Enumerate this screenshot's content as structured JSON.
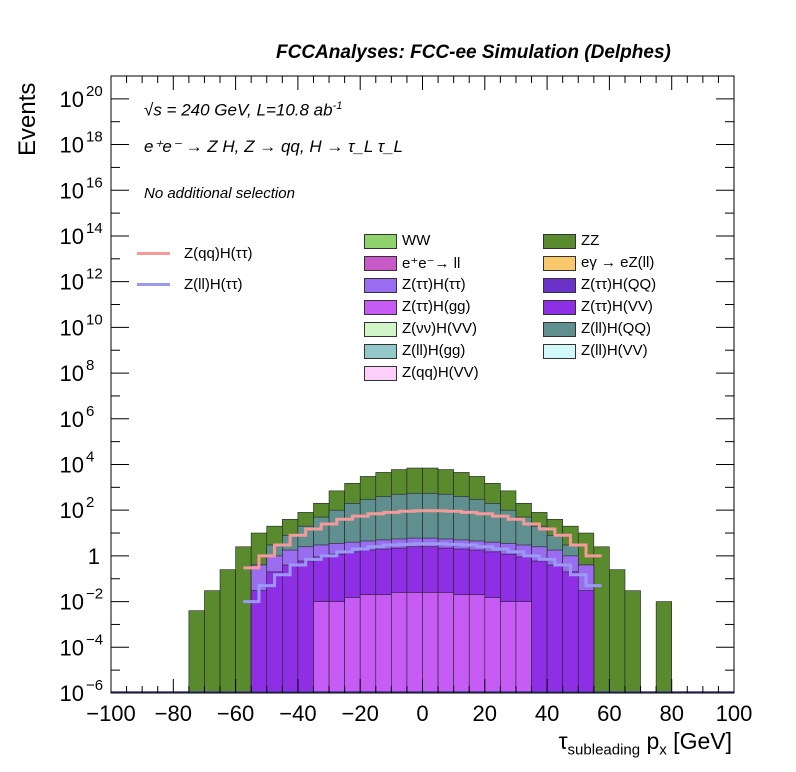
{
  "header": {
    "title": "FCCAnalyses: FCC-ee Simulation (Delphes)"
  },
  "annotations": {
    "energy": "√s = 240 GeV, L=10.8 ab",
    "energy_sup": "-1",
    "process": "e⁺e⁻ → Z H, Z → qq, H → τ_L τ_L",
    "selection": "No additional selection"
  },
  "chart_data": {
    "type": "bar",
    "title": "",
    "xlabel": "τsubleading px [GeV]",
    "ylabel": "Events",
    "xlim": [
      -100,
      100
    ],
    "ylim": [
      1e-06,
      1e+21
    ],
    "yscale": "log",
    "bin_width": 5,
    "bin_centers": [
      -77.5,
      -72.5,
      -67.5,
      -62.5,
      -57.5,
      -52.5,
      -47.5,
      -42.5,
      -37.5,
      -32.5,
      -27.5,
      -22.5,
      -17.5,
      -12.5,
      -7.5,
      -2.5,
      2.5,
      7.5,
      12.5,
      17.5,
      22.5,
      27.5,
      32.5,
      37.5,
      42.5,
      47.5,
      52.5,
      57.5,
      62.5,
      67.5,
      72.5,
      77.5
    ],
    "x_ticks": [
      -100,
      -80,
      -60,
      -40,
      -20,
      0,
      20,
      40,
      60,
      80,
      100
    ],
    "y_ticks": [
      {
        "label": "10",
        "exp": "-6"
      },
      {
        "label": "10",
        "exp": "-4"
      },
      {
        "label": "10",
        "exp": "-2"
      },
      {
        "label": "1",
        "exp": ""
      },
      {
        "label": "10",
        "exp": "2"
      },
      {
        "label": "10",
        "exp": "4"
      },
      {
        "label": "10",
        "exp": "6"
      },
      {
        "label": "10",
        "exp": "8"
      },
      {
        "label": "10",
        "exp": "10"
      },
      {
        "label": "10",
        "exp": "12"
      },
      {
        "label": "10",
        "exp": "14"
      },
      {
        "label": "10",
        "exp": "16"
      },
      {
        "label": "10",
        "exp": "18"
      },
      {
        "label": "10",
        "exp": "20"
      }
    ],
    "stack_totals": [
      {
        "name": "ZZ",
        "color": "#5a8a2e",
        "values": [
          1e-06,
          0.004,
          0.03,
          0.25,
          2.5,
          10,
          20,
          40,
          80,
          200,
          700,
          1500,
          3000,
          4500,
          6000,
          7000,
          7000,
          6000,
          4500,
          3000,
          1500,
          700,
          200,
          80,
          40,
          20,
          10,
          2.5,
          0.25,
          0.03,
          1e-06,
          0.01
        ]
      },
      {
        "name": "Z(ll)H(QQ)",
        "color": "#5f8f8f",
        "values": [
          null,
          null,
          null,
          null,
          null,
          0.4,
          3,
          8,
          20,
          50,
          100,
          200,
          300,
          400,
          500,
          550,
          550,
          500,
          400,
          300,
          200,
          100,
          50,
          20,
          8,
          3,
          0.4,
          null,
          null,
          null,
          null,
          null
        ]
      },
      {
        "name": "Z(ττ)H(ττ)",
        "color": "#9a6cf0",
        "values": [
          null,
          null,
          null,
          null,
          null,
          0.4,
          1,
          1.8,
          2.5,
          3,
          3.5,
          4,
          4.5,
          5,
          5.5,
          6,
          6,
          5.5,
          5,
          4.5,
          4,
          3.5,
          3,
          2.5,
          1.8,
          1,
          0.4,
          null,
          null,
          null,
          null,
          null
        ]
      },
      {
        "name": "Z(ττ)H(VV)",
        "color": "#8e2fe6",
        "values": [
          null,
          null,
          null,
          null,
          1e-06,
          0.03,
          0.2,
          0.4,
          0.6,
          0.9,
          1.2,
          1.5,
          1.8,
          2,
          2.2,
          2.5,
          2.5,
          2.2,
          2,
          1.8,
          1.5,
          1.2,
          0.9,
          0.6,
          0.4,
          0.2,
          0.03,
          1e-06,
          null,
          null,
          null,
          null
        ]
      },
      {
        "name": "Z(ττ)H(gg)",
        "color": "#c75cf5",
        "values": [
          null,
          null,
          null,
          null,
          null,
          null,
          null,
          null,
          null,
          0.01,
          0.01,
          0.015,
          0.02,
          0.02,
          0.025,
          0.025,
          0.025,
          0.025,
          0.02,
          0.02,
          0.015,
          0.01,
          0.01,
          null,
          null,
          null,
          null,
          null,
          null,
          null,
          null,
          null
        ]
      }
    ],
    "lines": [
      {
        "name": "Z(qq)H(ττ)",
        "color": "#f59a9a",
        "x": [
          -55,
          -50,
          -45,
          -40,
          -35,
          -30,
          -25,
          -20,
          -15,
          -10,
          -5,
          0,
          5,
          10,
          15,
          20,
          25,
          30,
          35,
          40,
          45,
          50,
          55
        ],
        "values": [
          0.3,
          1,
          3,
          8,
          15,
          25,
          40,
          55,
          70,
          80,
          90,
          95,
          95,
          90,
          80,
          70,
          55,
          40,
          25,
          15,
          8,
          3,
          1
        ]
      },
      {
        "name": "Z(ll)H(ττ)",
        "color": "#9a9af5",
        "x": [
          -55,
          -50,
          -45,
          -40,
          -35,
          -30,
          -25,
          -20,
          -15,
          -10,
          -5,
          0,
          5,
          10,
          15,
          20,
          25,
          30,
          35,
          40,
          45,
          50,
          55
        ],
        "values": [
          0.01,
          0.05,
          0.15,
          0.4,
          0.7,
          1,
          1.5,
          2,
          2.5,
          3,
          3.2,
          3.4,
          3.4,
          3.2,
          3,
          2.5,
          2,
          1.5,
          1,
          0.7,
          0.4,
          0.15,
          0.05
        ]
      }
    ],
    "legend": [
      {
        "name": "WW",
        "color": "#8fd16a"
      },
      {
        "name": "ZZ",
        "color": "#5a8a2e"
      },
      {
        "name": "e⁺e⁻→ ll",
        "color": "#c85ac8"
      },
      {
        "name": "eγ → eZ(ll)",
        "color": "#f7c96a"
      },
      {
        "name": "Z(ττ)H(ττ)",
        "color": "#9a6cf0"
      },
      {
        "name": "Z(ττ)H(QQ)",
        "color": "#6a32c8"
      },
      {
        "name": "Z(ττ)H(gg)",
        "color": "#c75cf5"
      },
      {
        "name": "Z(ττ)H(VV)",
        "color": "#8e2fe6"
      },
      {
        "name": "Z(νν)H(VV)",
        "color": "#d2f5c8"
      },
      {
        "name": "Z(ll)H(QQ)",
        "color": "#5f8f8f"
      },
      {
        "name": "Z(ll)H(gg)",
        "color": "#94c8c8"
      },
      {
        "name": "Z(ll)H(VV)",
        "color": "#d2f8f8"
      },
      {
        "name": "Z(qq)H(VV)",
        "color": "#fccefa"
      }
    ],
    "line_legend": [
      {
        "name": "Z(qq)H(ττ)",
        "color": "#f59a9a"
      },
      {
        "name": "Z(ll)H(ττ)",
        "color": "#9a9af5"
      }
    ],
    "grid": false,
    "legend_position": "top"
  }
}
